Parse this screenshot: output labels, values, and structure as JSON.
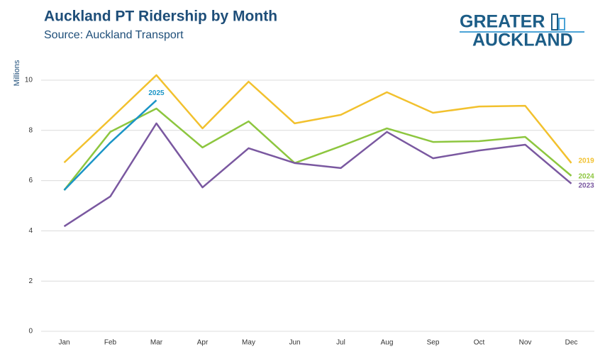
{
  "chart_data": {
    "type": "line",
    "title": "Auckland PT Ridership by Month",
    "subtitle": "Source: Auckland Transport",
    "y_label": "Millions",
    "logo": {
      "line1": "GREATER",
      "line2": "AUCKLAND"
    },
    "categories": [
      "Jan",
      "Feb",
      "Mar",
      "Apr",
      "May",
      "Jun",
      "Jul",
      "Aug",
      "Sep",
      "Oct",
      "Nov",
      "Dec"
    ],
    "ylim": [
      0,
      10
    ],
    "yticks": [
      0,
      2,
      4,
      6,
      8,
      10
    ],
    "grid": true,
    "series": [
      {
        "name": "2019",
        "color": "#f2c12e",
        "values": [
          6.72,
          8.45,
          10.2,
          8.08,
          9.94,
          8.28,
          8.62,
          9.52,
          8.7,
          8.95,
          8.98,
          6.7
        ]
      },
      {
        "name": "2024",
        "color": "#8dc63f",
        "values": [
          5.62,
          7.94,
          8.87,
          7.32,
          8.36,
          6.7,
          7.37,
          8.08,
          7.54,
          7.57,
          7.74,
          6.19
        ]
      },
      {
        "name": "2023",
        "color": "#7a58a0",
        "values": [
          4.18,
          5.37,
          8.28,
          5.73,
          7.29,
          6.7,
          6.5,
          7.94,
          6.89,
          7.2,
          7.43,
          5.88
        ]
      },
      {
        "name": "2025",
        "color": "#1b95c6",
        "values": [
          5.62,
          7.51,
          9.2,
          null,
          null,
          null,
          null,
          null,
          null,
          null,
          null,
          null
        ]
      }
    ]
  }
}
